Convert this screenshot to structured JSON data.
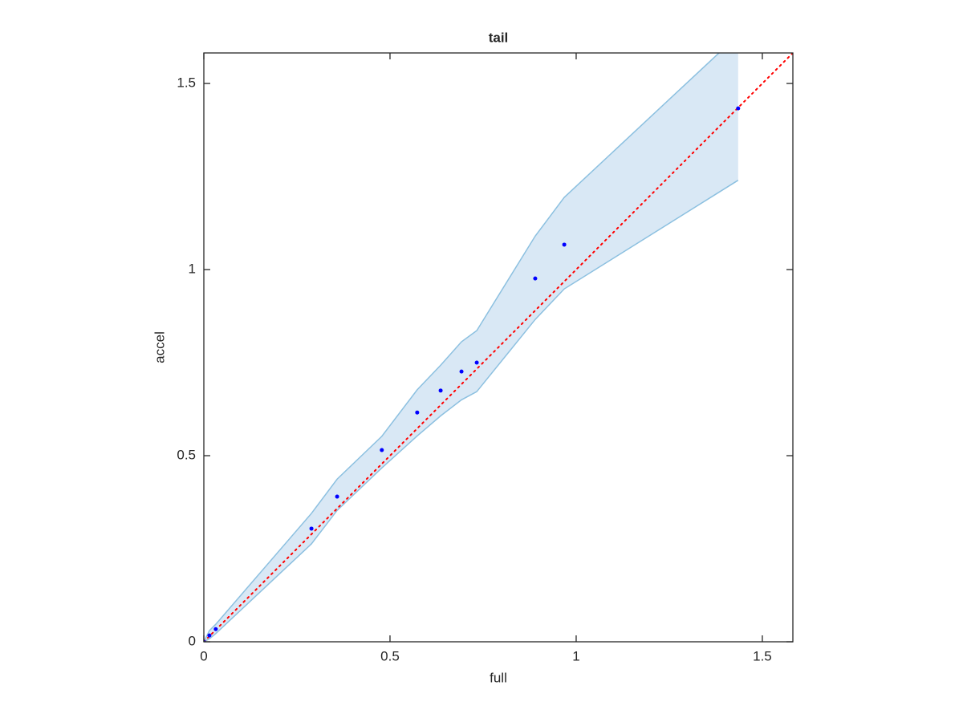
{
  "chart_data": {
    "type": "scatter",
    "title": "tail",
    "xlabel": "full",
    "ylabel": "accel",
    "xlim": [
      0,
      1.582
    ],
    "ylim": [
      0,
      1.582
    ],
    "xticks": [
      0,
      0.5,
      1,
      1.5
    ],
    "yticks": [
      0,
      0.5,
      1,
      1.5
    ],
    "points": {
      "color": "#0000ff",
      "x": [
        0,
        0.015,
        0.032,
        0.289,
        0.358,
        0.478,
        0.573,
        0.636,
        0.692,
        0.733,
        0.89,
        0.968,
        1.435
      ],
      "y": [
        0,
        0.017,
        0.034,
        0.304,
        0.39,
        0.515,
        0.616,
        0.675,
        0.726,
        0.75,
        0.976,
        1.067,
        1.433
      ]
    },
    "band": {
      "color": "#d9e8f5",
      "edge_color": "#8cc0e0",
      "x": [
        0,
        0.015,
        0.032,
        0.289,
        0.358,
        0.478,
        0.573,
        0.636,
        0.692,
        0.733,
        0.89,
        0.968,
        1.435
      ],
      "upper": [
        0,
        0.03,
        0.047,
        0.345,
        0.437,
        0.552,
        0.677,
        0.743,
        0.806,
        0.836,
        1.09,
        1.194,
        1.63
      ],
      "lower": [
        0,
        0.008,
        0.022,
        0.263,
        0.353,
        0.467,
        0.553,
        0.607,
        0.65,
        0.672,
        0.866,
        0.948,
        1.24
      ]
    },
    "reference_line": {
      "color": "#ff0000",
      "x": [
        0,
        1.582
      ],
      "y": [
        0,
        1.582
      ]
    }
  }
}
